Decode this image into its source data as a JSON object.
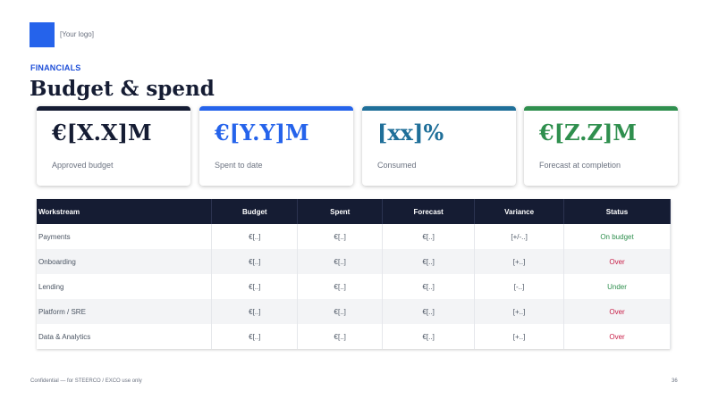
{
  "header": {
    "logo_text": "[Your logo]",
    "section_label": "FINANCIALS",
    "title": "Budget & spend"
  },
  "colors": {
    "brand_blue": "#2563eb",
    "navy": "#151c33",
    "accent_teal": "#1f6f99",
    "accent_green": "#2f8f4e",
    "status_good": "#2f8f4e",
    "status_bad": "#c81e47"
  },
  "kpis": [
    {
      "value": "€[X.X]M",
      "label": "Approved budget",
      "bar_color": "#151c33",
      "value_color": "#151c33"
    },
    {
      "value": "€[Y.Y]M",
      "label": "Spent to date",
      "bar_color": "#2563eb",
      "value_color": "#2563eb"
    },
    {
      "value": "[xx]%",
      "label": "Consumed",
      "bar_color": "#1f6f99",
      "value_color": "#1f6f99"
    },
    {
      "value": "€[Z.Z]M",
      "label": "Forecast at completion",
      "bar_color": "#2f8f4e",
      "value_color": "#2f8f4e"
    }
  ],
  "table": {
    "headers": [
      "Workstream",
      "Budget",
      "Spent",
      "Forecast",
      "Variance",
      "Status"
    ],
    "rows": [
      {
        "workstream": "Payments",
        "budget": "€[..]",
        "spent": "€[..]",
        "forecast": "€[..]",
        "variance": "[+/-..]",
        "status": "On budget",
        "status_type": "good"
      },
      {
        "workstream": "Onboarding",
        "budget": "€[..]",
        "spent": "€[..]",
        "forecast": "€[..]",
        "variance": "[+..]",
        "status": "Over",
        "status_type": "bad"
      },
      {
        "workstream": "Lending",
        "budget": "€[..]",
        "spent": "€[..]",
        "forecast": "€[..]",
        "variance": "[-..]",
        "status": "Under",
        "status_type": "good"
      },
      {
        "workstream": "Platform / SRE",
        "budget": "€[..]",
        "spent": "€[..]",
        "forecast": "€[..]",
        "variance": "[+..]",
        "status": "Over",
        "status_type": "bad"
      },
      {
        "workstream": "Data & Analytics",
        "budget": "€[..]",
        "spent": "€[..]",
        "forecast": "€[..]",
        "variance": "[+..]",
        "status": "Over",
        "status_type": "bad"
      }
    ]
  },
  "footer": {
    "confidential": "Confidential — for STEERCO / EXCO use only",
    "page_number": "36"
  }
}
